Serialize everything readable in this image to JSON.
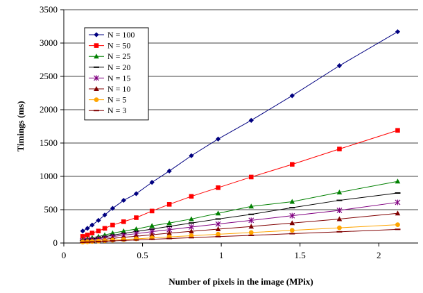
{
  "chart_data": {
    "type": "line",
    "xlabel": "Number of pixels in the image (MPix)",
    "ylabel": "Timings (ms)",
    "xlim": [
      0,
      2.25
    ],
    "ylim": [
      0,
      3500
    ],
    "xticks": [
      0,
      0.5,
      1,
      1.5,
      2
    ],
    "xtick_labels": [
      "0",
      "0.5",
      "1",
      "1.5",
      "2"
    ],
    "yticks": [
      0,
      500,
      1000,
      1500,
      2000,
      2500,
      3000,
      3500
    ],
    "ytick_labels": [
      "0",
      "500",
      "1000",
      "1500",
      "2000",
      "2500",
      "3000",
      "3500"
    ],
    "grid": "horizontal",
    "legend_position": "top-left",
    "x": [
      0.12,
      0.15,
      0.18,
      0.22,
      0.26,
      0.31,
      0.38,
      0.46,
      0.56,
      0.67,
      0.81,
      0.98,
      1.19,
      1.45,
      1.75,
      2.12
    ],
    "series": [
      {
        "name": "N = 100",
        "color": "#000080",
        "marker": "diamond",
        "values": [
          180,
          220,
          270,
          340,
          420,
          520,
          640,
          740,
          910,
          1080,
          1310,
          1560,
          1840,
          2210,
          2660,
          3170
        ]
      },
      {
        "name": "N = 50",
        "color": "#ff0000",
        "marker": "square",
        "values": [
          100,
          120,
          150,
          180,
          220,
          270,
          320,
          380,
          480,
          580,
          700,
          830,
          990,
          1180,
          1410,
          1690
        ]
      },
      {
        "name": "N = 25",
        "color": "#008000",
        "marker": "triangle",
        "values": [
          50,
          62,
          78,
          96,
          120,
          148,
          178,
          210,
          258,
          300,
          360,
          445,
          550,
          620,
          760,
          925
        ]
      },
      {
        "name": "N = 20",
        "color": "#000000",
        "marker": "dash",
        "values": [
          40,
          50,
          62,
          76,
          94,
          118,
          143,
          173,
          208,
          250,
          300,
          360,
          430,
          530,
          640,
          750
        ]
      },
      {
        "name": "N = 15",
        "color": "#800080",
        "marker": "star",
        "values": [
          35,
          42,
          52,
          64,
          78,
          96,
          118,
          140,
          170,
          200,
          240,
          285,
          340,
          410,
          490,
          610
        ]
      },
      {
        "name": "N = 10",
        "color": "#800000",
        "marker": "triangle",
        "values": [
          25,
          31,
          38,
          46,
          57,
          70,
          86,
          102,
          124,
          148,
          176,
          208,
          248,
          300,
          360,
          445
        ]
      },
      {
        "name": "N = 5",
        "color": "#ffa500",
        "marker": "circle",
        "values": [
          15,
          19,
          23,
          28,
          35,
          43,
          53,
          63,
          77,
          92,
          110,
          132,
          157,
          190,
          228,
          275
        ]
      },
      {
        "name": "N = 3",
        "color": "#800000",
        "marker": "dash",
        "values": [
          10,
          13,
          16,
          20,
          25,
          31,
          38,
          46,
          56,
          67,
          80,
          96,
          115,
          140,
          168,
          205
        ]
      }
    ]
  }
}
